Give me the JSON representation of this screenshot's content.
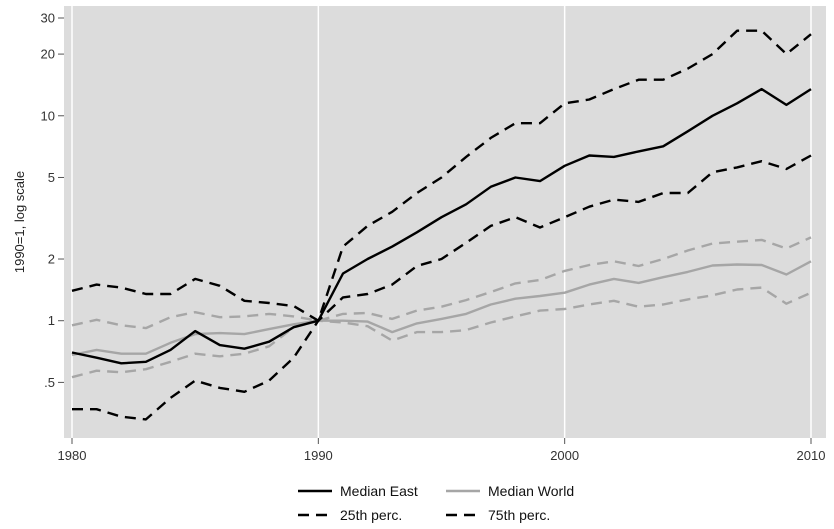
{
  "chart_data": {
    "type": "line",
    "title": "",
    "xlabel": "",
    "ylabel": "1990=1, log scale",
    "y_scale": "log",
    "xlim": [
      1980,
      2010
    ],
    "ylim": [
      0.33,
      33
    ],
    "grid": "vertical-only",
    "x_ticks": [
      1980,
      1990,
      2000,
      2010
    ],
    "x_tick_labels": [
      "1980",
      "1990",
      "2000",
      "2010"
    ],
    "y_ticks": [
      0.5,
      1,
      2,
      5,
      10,
      20,
      30
    ],
    "y_tick_labels": [
      ".5",
      "1",
      "2",
      "5",
      "10",
      "20",
      "30"
    ],
    "x": [
      1980,
      1981,
      1982,
      1983,
      1984,
      1985,
      1986,
      1987,
      1988,
      1989,
      1990,
      1991,
      1992,
      1993,
      1994,
      1995,
      1996,
      1997,
      1998,
      1999,
      2000,
      2001,
      2002,
      2003,
      2004,
      2005,
      2006,
      2007,
      2008,
      2009,
      2010
    ],
    "series": [
      {
        "key": "east_median",
        "name": "Median East",
        "color": "#000000",
        "style": "solid",
        "values": [
          0.7,
          0.66,
          0.62,
          0.63,
          0.72,
          0.89,
          0.76,
          0.73,
          0.79,
          0.93,
          1.0,
          1.7,
          2.0,
          2.3,
          2.7,
          3.2,
          3.7,
          4.5,
          5.0,
          4.8,
          5.7,
          6.4,
          6.3,
          6.7,
          7.1,
          8.4,
          10.0,
          11.5,
          13.5,
          11.3,
          13.5
        ]
      },
      {
        "key": "east_p25",
        "name": "25th perc.",
        "color": "#000000",
        "style": "dashed",
        "values": [
          0.37,
          0.37,
          0.34,
          0.33,
          0.42,
          0.51,
          0.47,
          0.45,
          0.51,
          0.66,
          1.0,
          1.3,
          1.35,
          1.5,
          1.85,
          2.0,
          2.4,
          2.9,
          3.2,
          2.85,
          3.2,
          3.6,
          3.9,
          3.8,
          4.2,
          4.2,
          5.3,
          5.6,
          6.0,
          5.5,
          6.4
        ]
      },
      {
        "key": "east_p75",
        "name": "75th perc.",
        "color": "#000000",
        "style": "dashed",
        "values": [
          1.4,
          1.5,
          1.45,
          1.35,
          1.35,
          1.6,
          1.48,
          1.25,
          1.22,
          1.18,
          1.0,
          2.3,
          2.9,
          3.4,
          4.2,
          5.0,
          6.3,
          7.8,
          9.2,
          9.2,
          11.5,
          12.0,
          13.5,
          15.0,
          15.0,
          17.0,
          20.0,
          26.0,
          26.0,
          20.0,
          25.0
        ]
      },
      {
        "key": "world_median",
        "name": "Median World",
        "color": "#a6a6a6",
        "style": "solid",
        "values": [
          0.68,
          0.72,
          0.69,
          0.69,
          0.78,
          0.86,
          0.87,
          0.86,
          0.91,
          0.96,
          1.0,
          1.0,
          0.99,
          0.88,
          0.97,
          1.02,
          1.08,
          1.2,
          1.28,
          1.32,
          1.37,
          1.5,
          1.6,
          1.53,
          1.63,
          1.73,
          1.86,
          1.88,
          1.87,
          1.68,
          1.95
        ]
      },
      {
        "key": "world_p25",
        "name": "",
        "color": "#a6a6a6",
        "style": "dashed",
        "values": [
          0.53,
          0.57,
          0.56,
          0.58,
          0.63,
          0.69,
          0.67,
          0.69,
          0.75,
          0.93,
          1.0,
          0.98,
          0.94,
          0.8,
          0.88,
          0.88,
          0.9,
          0.98,
          1.05,
          1.12,
          1.14,
          1.2,
          1.25,
          1.17,
          1.2,
          1.27,
          1.33,
          1.42,
          1.45,
          1.21,
          1.37
        ]
      },
      {
        "key": "world_p75",
        "name": "",
        "color": "#a6a6a6",
        "style": "dashed",
        "values": [
          0.95,
          1.01,
          0.95,
          0.92,
          1.04,
          1.1,
          1.04,
          1.05,
          1.08,
          1.05,
          1.0,
          1.08,
          1.09,
          1.02,
          1.12,
          1.17,
          1.26,
          1.38,
          1.52,
          1.58,
          1.75,
          1.87,
          1.95,
          1.85,
          2.0,
          2.2,
          2.38,
          2.43,
          2.48,
          2.25,
          2.55
        ]
      }
    ],
    "legend": {
      "placement": "bottom",
      "entries": [
        {
          "label": "Median East",
          "color": "#000000",
          "style": "solid"
        },
        {
          "label": "Median World",
          "color": "#a6a6a6",
          "style": "solid"
        },
        {
          "label": "25th perc.",
          "color": "#000000",
          "style": "dashed"
        },
        {
          "label": "75th perc.",
          "color": "#000000",
          "style": "dashed"
        }
      ]
    },
    "colors": {
      "plot_background": "#dcdcdc",
      "gridline": "#ffffff"
    }
  }
}
